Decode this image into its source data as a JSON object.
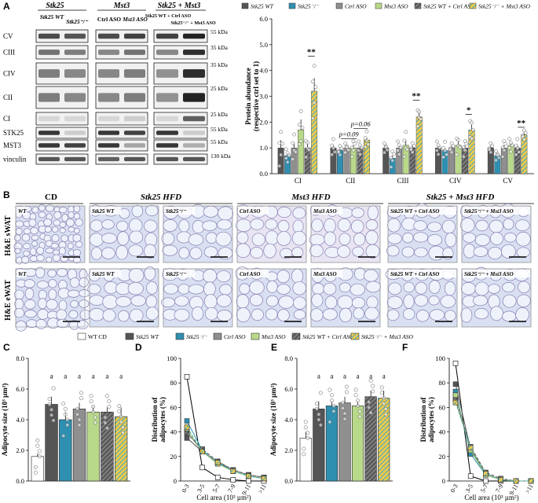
{
  "colors": {
    "wt_cd": "#ffffff",
    "stk25_wt": "#555555",
    "stk25_ko": "#2f8fb0",
    "ctrl_aso": "#8f8f8f",
    "mst3_aso": "#b9d98a",
    "combo_ctrl": "#5a5a5a",
    "combo_ko_aso": "#7fc4a6",
    "tissue_bg": "#d8e0f2",
    "tissue_cell": "#eef2fb",
    "tissue_wall": "#8a7fb2"
  },
  "panel_labels": {
    "a": "A",
    "b": "B",
    "c": "C",
    "d": "D",
    "e": "E",
    "f": "F"
  },
  "blot": {
    "groups": [
      {
        "title": "Stk25",
        "lanes": [
          "Stk25 WT",
          "Stk25⁻/⁻"
        ]
      },
      {
        "title": "Mst3",
        "lanes": [
          "Ctrl ASO",
          "Mst3 ASO"
        ]
      },
      {
        "title": "Stk25 + Mst3",
        "lanes": [
          "Stk25 WT + Ctrl ASO",
          "Stk25⁻/⁻ + Mst3 ASO"
        ]
      }
    ],
    "rows": [
      "CV",
      "CIII",
      "CIV",
      "CII",
      "CI",
      "STK25",
      "MST3",
      "vinculin"
    ],
    "markers": [
      "55 kDa",
      "35 kDa",
      "35 kDa",
      "25 kDa",
      "25 kDa",
      "55 kDa",
      "55 kDa",
      "130 kDa"
    ]
  },
  "legend_a": [
    "Stk25 WT",
    "Stk25⁻/⁻",
    "Ctrl ASO",
    "Mst3 ASO",
    "Stk25 WT + Ctrl ASO",
    "Stk25⁻/⁻ + Mst3 ASO"
  ],
  "legend_c": [
    "WT CD",
    "Stk25 WT",
    "Stk25⁻/⁻",
    "Ctrl ASO",
    "Mst3 ASO",
    "Stk25 WT + Ctrl ASO",
    "Stk25⁻/⁻ + Mst3 ASO"
  ],
  "histology": {
    "headers": [
      "CD",
      "Stk25 HFD",
      "Mst3 HFD",
      "Stk25 + Mst3 HFD"
    ],
    "rows": [
      "H&E sWAT",
      "H&E eWAT"
    ],
    "labels_swat": [
      "WT",
      "Stk25 WT",
      "Stk25⁻/⁻",
      "Ctrl ASO",
      "Mst3 ASO",
      "Stk25 WT + Ctrl ASO",
      "Stk25⁻/⁻ + Mst3 ASO"
    ],
    "labels_ewat": [
      "WT",
      "Stk25 WT",
      "Stk25⁻/⁻",
      "Ctrl ASO",
      "Mst3 ASO",
      "Stk25 WT + Ctrl ASO",
      "Stk25⁻/⁻ + Mst3 ASO"
    ]
  },
  "chart_data": [
    {
      "id": "A",
      "type": "bar",
      "ylabel": "Protein abundance (respective ctrl set to 1)",
      "ylim": [
        0,
        6
      ],
      "yticks": [
        "0.0",
        "1.0",
        "2.0",
        "3.0",
        "4.0",
        "5.0",
        "6.0"
      ],
      "categories": [
        "CI",
        "CII",
        "CIII",
        "CIV",
        "CV"
      ],
      "series": [
        {
          "name": "Stk25 WT",
          "values": [
            1.0,
            1.0,
            1.0,
            1.0,
            1.0
          ]
        },
        {
          "name": "Stk25⁻/⁻",
          "values": [
            0.7,
            0.9,
            0.6,
            0.9,
            0.7
          ]
        },
        {
          "name": "Ctrl ASO",
          "values": [
            1.0,
            1.0,
            1.0,
            1.0,
            1.0
          ]
        },
        {
          "name": "Mst3 ASO",
          "values": [
            1.7,
            1.0,
            1.1,
            1.1,
            1.1
          ]
        },
        {
          "name": "Stk25 WT + Ctrl ASO",
          "values": [
            1.0,
            1.0,
            1.0,
            1.0,
            1.0
          ]
        },
        {
          "name": "Stk25⁻/⁻ + Mst3 ASO",
          "values": [
            3.2,
            1.3,
            2.2,
            1.7,
            1.5
          ]
        }
      ],
      "errors": [
        [
          0.3,
          0.1,
          0.1,
          0.1,
          0.1
        ],
        [
          0.1,
          0.1,
          0.1,
          0.1,
          0.1
        ],
        [
          0.2,
          0.1,
          0.1,
          0.1,
          0.1
        ],
        [
          0.4,
          0.1,
          0.2,
          0.2,
          0.1
        ],
        [
          0.2,
          0.1,
          0.1,
          0.1,
          0.1
        ],
        [
          0.5,
          0.1,
          0.2,
          0.2,
          0.1
        ]
      ],
      "annotations": [
        {
          "cat": 0,
          "text": "**"
        },
        {
          "cat": 1,
          "text": "p=0.06"
        },
        {
          "cat": 1,
          "text": "p=0.09"
        },
        {
          "cat": 2,
          "text": "**"
        },
        {
          "cat": 3,
          "text": "*"
        },
        {
          "cat": 4,
          "text": "**"
        }
      ]
    },
    {
      "id": "C",
      "type": "bar",
      "ylabel": "Adipocyte size (10³ µm²)",
      "ylim": [
        0,
        8
      ],
      "yticks": [
        "0.0",
        "2.0",
        "4.0",
        "6.0",
        "8.0"
      ],
      "categories": [
        "WT CD",
        "Stk25 WT",
        "Stk25⁻/⁻",
        "Ctrl ASO",
        "Mst3 ASO",
        "Stk25 WT + Ctrl ASO",
        "Stk25⁻/⁻ + Mst3 ASO"
      ],
      "values": [
        1.6,
        5.0,
        4.0,
        4.7,
        4.5,
        4.5,
        4.2
      ],
      "errors": [
        0.2,
        0.5,
        0.5,
        0.4,
        0.4,
        0.3,
        0.6
      ],
      "sig": [
        "",
        "a",
        "a",
        "a",
        "a",
        "a",
        "a"
      ]
    },
    {
      "id": "D",
      "type": "line",
      "ylabel": "Distribution of adipocytes (%)",
      "xlabel": "Cell area (10³ µm²)",
      "ylim": [
        0,
        100
      ],
      "yticks": [
        "0",
        "20",
        "40",
        "60",
        "80",
        "100"
      ],
      "categories": [
        "0-3",
        "3-5",
        "5-7",
        "7-9",
        "9-11",
        ">11"
      ],
      "series": [
        {
          "name": "WT CD",
          "values": [
            85,
            11,
            3,
            1,
            0,
            0
          ]
        },
        {
          "name": "Stk25 WT",
          "values": [
            35,
            24,
            15,
            9,
            5,
            3
          ]
        },
        {
          "name": "Stk25⁻/⁻",
          "values": [
            49,
            25,
            15,
            8,
            4,
            2
          ]
        },
        {
          "name": "Ctrl ASO",
          "values": [
            40,
            24,
            16,
            9,
            5,
            3
          ]
        },
        {
          "name": "Mst3 ASO",
          "values": [
            42,
            24,
            14,
            8,
            4,
            2
          ]
        },
        {
          "name": "Stk25 WT + Ctrl ASO",
          "values": [
            39,
            26,
            16,
            9,
            5,
            3
          ]
        },
        {
          "name": "Stk25⁻/⁻ + Mst3 ASO",
          "values": [
            44,
            24,
            15,
            8,
            4,
            2
          ]
        }
      ]
    },
    {
      "id": "E",
      "type": "bar",
      "ylabel": "Adipocyte size (10³ µm²)",
      "ylim": [
        0,
        8
      ],
      "yticks": [
        "0.0",
        "2.0",
        "4.0",
        "6.0",
        "8.0"
      ],
      "categories": [
        "WT CD",
        "Stk25 WT",
        "Stk25⁻/⁻",
        "Ctrl ASO",
        "Mst3 ASO",
        "Stk25 WT + Ctrl ASO",
        "Stk25⁻/⁻ + Mst3 ASO"
      ],
      "values": [
        2.8,
        4.7,
        4.9,
        5.1,
        4.9,
        5.5,
        5.4
      ],
      "errors": [
        0.4,
        0.5,
        0.3,
        0.4,
        0.3,
        0.4,
        0.5
      ],
      "sig": [
        "",
        "a",
        "a",
        "a",
        "a",
        "a",
        "a"
      ]
    },
    {
      "id": "F",
      "type": "line",
      "ylabel": "Distribution of adipocytes (%)",
      "xlabel": "Cell area (10³ µm²)",
      "ylim": [
        0,
        100
      ],
      "yticks": [
        "0",
        "20",
        "40",
        "60",
        "80",
        "100"
      ],
      "categories": [
        "0-3",
        "3-5",
        "5-7",
        "7-9",
        "9-11",
        ">11"
      ],
      "series": [
        {
          "name": "WT CD",
          "values": [
            96,
            4,
            0,
            0,
            0,
            0
          ]
        },
        {
          "name": "Stk25 WT",
          "values": [
            79,
            26,
            6,
            1,
            0,
            0
          ]
        },
        {
          "name": "Stk25⁻/⁻",
          "values": [
            73,
            22,
            5,
            1,
            0,
            0
          ]
        },
        {
          "name": "Ctrl ASO",
          "values": [
            68,
            27,
            6,
            1,
            0,
            0
          ]
        },
        {
          "name": "Mst3 ASO",
          "values": [
            70,
            25,
            5,
            1,
            0,
            0
          ]
        },
        {
          "name": "Stk25 WT + Ctrl ASO",
          "values": [
            66,
            28,
            7,
            2,
            0,
            0
          ]
        },
        {
          "name": "Stk25⁻/⁻ + Mst3 ASO",
          "values": [
            64,
            27,
            6,
            1,
            0,
            0
          ]
        }
      ]
    }
  ]
}
